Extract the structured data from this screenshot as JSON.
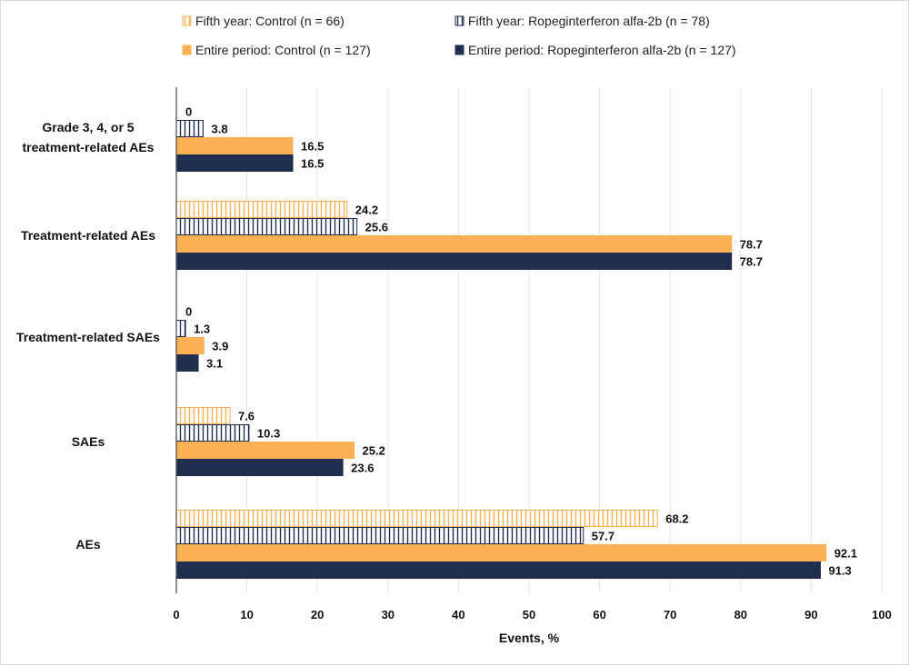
{
  "chart_data": {
    "type": "bar",
    "orientation": "horizontal",
    "title": "",
    "xlabel": "Events, %",
    "ylabel": "",
    "xlim": [
      0,
      100
    ],
    "xticks": [
      0,
      10,
      20,
      30,
      40,
      50,
      60,
      70,
      80,
      90,
      100
    ],
    "grid": true,
    "legend_position": "top",
    "categories": [
      [
        "Grade 3, 4, or 5",
        "treatment-related AEs"
      ],
      [
        "Treatment-related AEs"
      ],
      [
        "Treatment-related SAEs"
      ],
      [
        "SAEs"
      ],
      [
        "AEs"
      ]
    ],
    "series": [
      {
        "name": "Fifth year: Control (n = 66)",
        "color": "#f9b154",
        "style": "hatched-vertical",
        "values": [
          0,
          24.2,
          0,
          7.6,
          68.2
        ]
      },
      {
        "name": "Fifth year: Ropeginterferon alfa-2b (n = 78)",
        "color": "#1f2d4e",
        "style": "hatched-vertical",
        "values": [
          3.8,
          25.6,
          1.3,
          10.3,
          57.7
        ]
      },
      {
        "name": "Entire period: Control (n = 127)",
        "color": "#f9b154",
        "style": "solid",
        "values": [
          16.5,
          78.7,
          3.9,
          25.2,
          92.1
        ]
      },
      {
        "name": "Entire period: Ropeginterferon alfa-2b (n = 127)",
        "color": "#1f2d4e",
        "style": "solid",
        "values": [
          16.5,
          78.7,
          3.1,
          23.6,
          91.3
        ]
      }
    ]
  }
}
